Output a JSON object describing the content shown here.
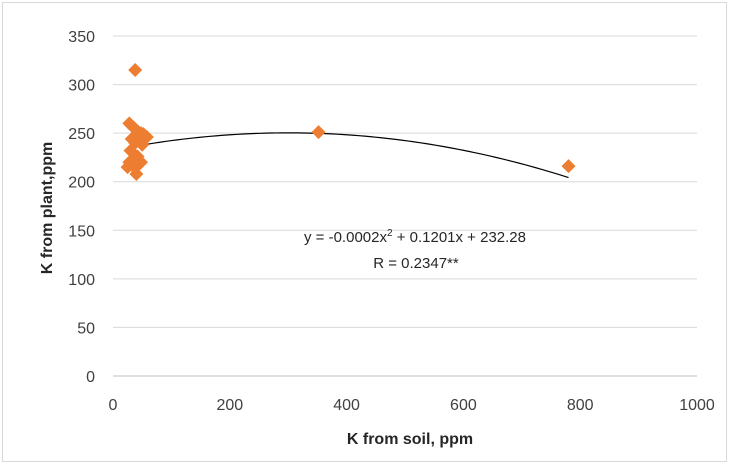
{
  "chart_data": {
    "type": "scatter",
    "xlabel": "K from soil, ppm",
    "ylabel": "K from plant,ppm",
    "xlim": [
      0,
      1000
    ],
    "ylim": [
      0,
      350
    ],
    "xticks": [
      0,
      200,
      400,
      600,
      800,
      1000
    ],
    "yticks": [
      0,
      50,
      100,
      150,
      200,
      250,
      300,
      350
    ],
    "grid": "horizontal",
    "marker_color": "#ED7D31",
    "trendline_color": "#000000",
    "series": [
      {
        "points": [
          [
            38,
            315
          ],
          [
            28,
            260
          ],
          [
            35,
            256
          ],
          [
            42,
            252
          ],
          [
            48,
            250
          ],
          [
            52,
            249
          ],
          [
            58,
            246
          ],
          [
            45,
            245
          ],
          [
            32,
            244
          ],
          [
            38,
            240
          ],
          [
            50,
            238
          ],
          [
            30,
            232
          ],
          [
            42,
            226
          ],
          [
            35,
            223
          ],
          [
            28,
            220
          ],
          [
            48,
            220
          ],
          [
            25,
            215
          ],
          [
            38,
            214
          ],
          [
            40,
            208
          ],
          [
            352,
            251
          ],
          [
            780,
            216
          ]
        ]
      }
    ],
    "trendline": {
      "type": "polynomial",
      "coefficients": {
        "a": -0.0002,
        "b": 0.1201,
        "c": 232.28
      },
      "x_range": [
        25,
        780
      ]
    },
    "annotations": {
      "equation_prefix": "y = -0.0002x",
      "equation_sup": "2",
      "equation_suffix": " + 0.1201x + 232.28",
      "r_text": "R = 0.2347**"
    }
  }
}
